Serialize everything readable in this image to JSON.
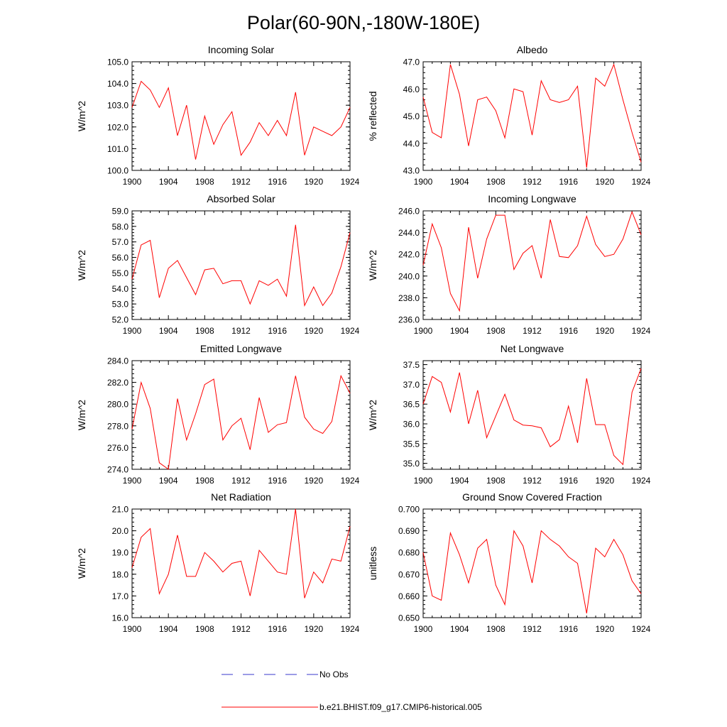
{
  "figure_title": "Polar(60-90N,-180W-180E)",
  "colors": {
    "model": "#ff0000",
    "obs": "#3a3acd",
    "axis": "#000000"
  },
  "legend": {
    "obs_label": "No Obs",
    "model_label": "b.e21.BHIST.f09_g17.CMIP6-historical.005"
  },
  "chart_data": [
    {
      "type": "line",
      "title": "Incoming Solar",
      "xlabel": "",
      "ylabel": "W/m^2",
      "xlim": [
        1900,
        1924
      ],
      "ylim": [
        100.0,
        105.0
      ],
      "xticks": [
        "1900",
        "1904",
        "1908",
        "1912",
        "1916",
        "1920",
        "1924"
      ],
      "yticks": [
        "100.0",
        "101.0",
        "102.0",
        "103.0",
        "104.0",
        "105.0"
      ],
      "series": [
        {
          "name": "b.e21.BHIST.f09_g17.CMIP6-historical.005",
          "x": [
            1900,
            1901,
            1902,
            1903,
            1904,
            1905,
            1906,
            1907,
            1908,
            1909,
            1910,
            1911,
            1912,
            1913,
            1914,
            1915,
            1916,
            1917,
            1918,
            1919,
            1920,
            1921,
            1922,
            1923,
            1924
          ],
          "values": [
            102.9,
            104.1,
            103.7,
            102.9,
            103.8,
            101.6,
            103.0,
            100.5,
            102.5,
            101.2,
            102.1,
            102.7,
            100.7,
            101.3,
            102.2,
            101.6,
            102.3,
            101.6,
            103.6,
            100.7,
            102.0,
            101.8,
            101.6,
            102.0,
            102.9
          ]
        }
      ]
    },
    {
      "type": "line",
      "title": "Albedo",
      "xlabel": "",
      "ylabel": "% reflected",
      "xlim": [
        1900,
        1924
      ],
      "ylim": [
        43.0,
        47.0
      ],
      "xticks": [
        "1900",
        "1904",
        "1908",
        "1912",
        "1916",
        "1920",
        "1924"
      ],
      "yticks": [
        "43.0",
        "44.0",
        "45.0",
        "46.0",
        "47.0"
      ],
      "series": [
        {
          "name": "b.e21.BHIST.f09_g17.CMIP6-historical.005",
          "x": [
            1900,
            1901,
            1902,
            1903,
            1904,
            1905,
            1906,
            1907,
            1908,
            1909,
            1910,
            1911,
            1912,
            1913,
            1914,
            1915,
            1916,
            1917,
            1918,
            1919,
            1920,
            1921,
            1922,
            1923,
            1924
          ],
          "values": [
            45.7,
            44.4,
            44.2,
            46.9,
            45.8,
            43.9,
            45.6,
            45.7,
            45.2,
            44.2,
            46.0,
            45.9,
            44.3,
            46.3,
            45.6,
            45.5,
            45.6,
            46.1,
            43.1,
            46.4,
            46.1,
            46.9,
            45.6,
            44.4,
            43.3
          ]
        }
      ]
    },
    {
      "type": "line",
      "title": "Absorbed Solar",
      "xlabel": "",
      "ylabel": "W/m^2",
      "xlim": [
        1900,
        1924
      ],
      "ylim": [
        52.0,
        59.0
      ],
      "xticks": [
        "1900",
        "1904",
        "1908",
        "1912",
        "1916",
        "1920",
        "1924"
      ],
      "yticks": [
        "52.0",
        "53.0",
        "54.0",
        "55.0",
        "56.0",
        "57.0",
        "58.0",
        "59.0"
      ],
      "series": [
        {
          "name": "b.e21.BHIST.f09_g17.CMIP6-historical.005",
          "x": [
            1900,
            1901,
            1902,
            1903,
            1904,
            1905,
            1906,
            1907,
            1908,
            1909,
            1910,
            1911,
            1912,
            1913,
            1914,
            1915,
            1916,
            1917,
            1918,
            1919,
            1920,
            1921,
            1922,
            1923,
            1924
          ],
          "values": [
            54.6,
            56.8,
            57.1,
            53.4,
            55.3,
            55.8,
            54.7,
            53.6,
            55.2,
            55.3,
            54.3,
            54.5,
            54.5,
            53.0,
            54.5,
            54.2,
            54.6,
            53.5,
            58.1,
            52.9,
            54.1,
            52.9,
            53.7,
            55.4,
            57.6
          ]
        }
      ]
    },
    {
      "type": "line",
      "title": "Incoming Longwave",
      "xlabel": "",
      "ylabel": "W/m^2",
      "xlim": [
        1900,
        1924
      ],
      "ylim": [
        236.0,
        246.0
      ],
      "xticks": [
        "1900",
        "1904",
        "1908",
        "1912",
        "1916",
        "1920",
        "1924"
      ],
      "yticks": [
        "236.0",
        "238.0",
        "240.0",
        "242.0",
        "244.0",
        "246.0"
      ],
      "series": [
        {
          "name": "b.e21.BHIST.f09_g17.CMIP6-historical.005",
          "x": [
            1900,
            1901,
            1902,
            1903,
            1904,
            1905,
            1906,
            1907,
            1908,
            1909,
            1910,
            1911,
            1912,
            1913,
            1914,
            1915,
            1916,
            1917,
            1918,
            1919,
            1920,
            1921,
            1922,
            1923,
            1924
          ],
          "values": [
            241.0,
            244.8,
            242.6,
            238.4,
            236.8,
            244.5,
            239.8,
            243.4,
            245.6,
            245.6,
            240.6,
            242.1,
            242.8,
            239.8,
            245.2,
            241.8,
            241.7,
            242.8,
            245.5,
            242.9,
            241.8,
            242.0,
            243.4,
            245.9,
            243.8
          ]
        }
      ]
    },
    {
      "type": "line",
      "title": "Emitted Longwave",
      "xlabel": "",
      "ylabel": "W/m^2",
      "xlim": [
        1900,
        1924
      ],
      "ylim": [
        274.0,
        284.0
      ],
      "xticks": [
        "1900",
        "1904",
        "1908",
        "1912",
        "1916",
        "1920",
        "1924"
      ],
      "yticks": [
        "274.0",
        "276.0",
        "278.0",
        "280.0",
        "282.0",
        "284.0"
      ],
      "series": [
        {
          "name": "b.e21.BHIST.f09_g17.CMIP6-historical.005",
          "x": [
            1900,
            1901,
            1902,
            1903,
            1904,
            1905,
            1906,
            1907,
            1908,
            1909,
            1910,
            1911,
            1912,
            1913,
            1914,
            1915,
            1916,
            1917,
            1918,
            1919,
            1920,
            1921,
            1922,
            1923,
            1924
          ],
          "values": [
            277.7,
            282.0,
            279.6,
            274.6,
            274.0,
            280.5,
            276.7,
            279.1,
            281.8,
            282.3,
            276.7,
            278.0,
            278.7,
            275.8,
            280.6,
            277.4,
            278.1,
            278.3,
            282.6,
            278.8,
            277.7,
            277.3,
            278.4,
            282.6,
            281.0
          ]
        }
      ]
    },
    {
      "type": "line",
      "title": "Net Longwave",
      "xlabel": "",
      "ylabel": "W/m^2",
      "xlim": [
        1900,
        1924
      ],
      "ylim": [
        34.85,
        37.6
      ],
      "xticks": [
        "1900",
        "1904",
        "1908",
        "1912",
        "1916",
        "1920",
        "1924"
      ],
      "yticks": [
        "35.0",
        "35.5",
        "36.0",
        "36.5",
        "37.0",
        "37.5"
      ],
      "series": [
        {
          "name": "b.e21.BHIST.f09_g17.CMIP6-historical.005",
          "x": [
            1900,
            1901,
            1902,
            1903,
            1904,
            1905,
            1906,
            1907,
            1908,
            1909,
            1910,
            1911,
            1912,
            1913,
            1914,
            1915,
            1916,
            1917,
            1918,
            1919,
            1920,
            1921,
            1922,
            1923,
            1924
          ],
          "values": [
            36.5,
            37.2,
            37.05,
            36.3,
            37.3,
            36.0,
            36.85,
            35.65,
            36.2,
            36.75,
            36.1,
            35.97,
            35.95,
            35.9,
            35.42,
            35.6,
            36.45,
            35.52,
            37.15,
            35.98,
            35.98,
            35.2,
            34.97,
            36.8,
            37.4
          ]
        }
      ]
    },
    {
      "type": "line",
      "title": "Net Radiation",
      "xlabel": "",
      "ylabel": "W/m^2",
      "xlim": [
        1900,
        1924
      ],
      "ylim": [
        16.0,
        21.0
      ],
      "xticks": [
        "1900",
        "1904",
        "1908",
        "1912",
        "1916",
        "1920",
        "1924"
      ],
      "yticks": [
        "16.0",
        "17.0",
        "18.0",
        "19.0",
        "20.0",
        "21.0"
      ],
      "series": [
        {
          "name": "b.e21.BHIST.f09_g17.CMIP6-historical.005",
          "x": [
            1900,
            1901,
            1902,
            1903,
            1904,
            1905,
            1906,
            1907,
            1908,
            1909,
            1910,
            1911,
            1912,
            1913,
            1914,
            1915,
            1916,
            1917,
            1918,
            1919,
            1920,
            1921,
            1922,
            1923,
            1924
          ],
          "values": [
            18.3,
            19.7,
            20.1,
            17.1,
            18.0,
            19.8,
            17.9,
            17.9,
            19.0,
            18.6,
            18.1,
            18.5,
            18.6,
            17.0,
            19.1,
            18.6,
            18.1,
            18.0,
            21.0,
            16.9,
            18.1,
            17.6,
            18.7,
            18.6,
            20.2
          ]
        }
      ]
    },
    {
      "type": "line",
      "title": "Ground Snow Covered Fraction",
      "xlabel": "",
      "ylabel": "unitless",
      "xlim": [
        1900,
        1924
      ],
      "ylim": [
        0.65,
        0.7
      ],
      "xticks": [
        "1900",
        "1904",
        "1908",
        "1912",
        "1916",
        "1920",
        "1924"
      ],
      "yticks": [
        "0.650",
        "0.660",
        "0.670",
        "0.680",
        "0.690",
        "0.700"
      ],
      "series": [
        {
          "name": "b.e21.BHIST.f09_g17.CMIP6-historical.005",
          "x": [
            1900,
            1901,
            1902,
            1903,
            1904,
            1905,
            1906,
            1907,
            1908,
            1909,
            1910,
            1911,
            1912,
            1913,
            1914,
            1915,
            1916,
            1917,
            1918,
            1919,
            1920,
            1921,
            1922,
            1923,
            1924
          ],
          "values": [
            0.68,
            0.66,
            0.658,
            0.689,
            0.679,
            0.666,
            0.682,
            0.686,
            0.665,
            0.656,
            0.69,
            0.683,
            0.666,
            0.69,
            0.686,
            0.683,
            0.678,
            0.675,
            0.652,
            0.682,
            0.678,
            0.686,
            0.679,
            0.667,
            0.661
          ]
        }
      ]
    }
  ]
}
